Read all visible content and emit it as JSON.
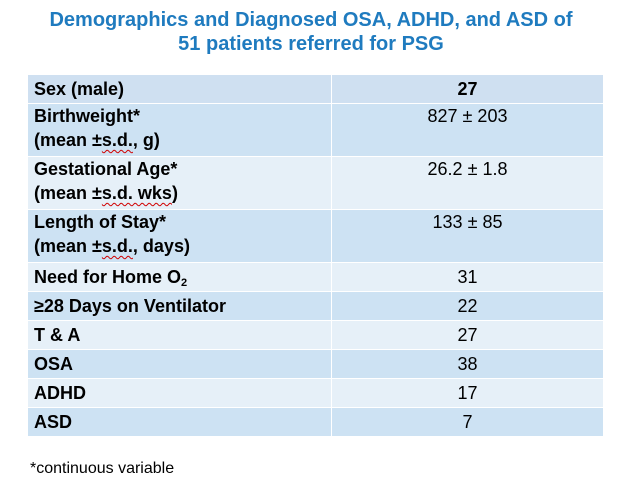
{
  "title": {
    "line1": "Demographics and Diagnosed OSA, ADHD, and ASD of",
    "line2": "51 patients referred for PSG"
  },
  "table": {
    "rows": [
      {
        "label": "Sex (male)",
        "value": "27"
      },
      {
        "label_line1": "Birthweight*",
        "label_line2_prefix": "(mean ±",
        "label_line2_abbr": "s.d.",
        "label_line2_suffix": ", g)",
        "value": "827 ± 203"
      },
      {
        "label_line1": "Gestational Age*",
        "label_line2_prefix": "(mean ±",
        "label_line2_abbr": "s.d. wks",
        "label_line2_suffix": ")",
        "value": "26.2 ± 1.8"
      },
      {
        "label_line1": "Length of Stay*",
        "label_line2_prefix": "(mean ±",
        "label_line2_abbr": "s.d.",
        "label_line2_suffix": ", days)",
        "value": "133 ± 85"
      },
      {
        "label_main": "Need for Home O",
        "label_sub": "2",
        "value": "31"
      },
      {
        "label": "≥28 Days on Ventilator",
        "value": "22"
      },
      {
        "label": "T & A",
        "value": "27"
      },
      {
        "label": "OSA",
        "value": "38"
      },
      {
        "label": "ADHD",
        "value": "17"
      },
      {
        "label": "ASD",
        "value": "7"
      }
    ]
  },
  "footnote": "*continuous variable"
}
